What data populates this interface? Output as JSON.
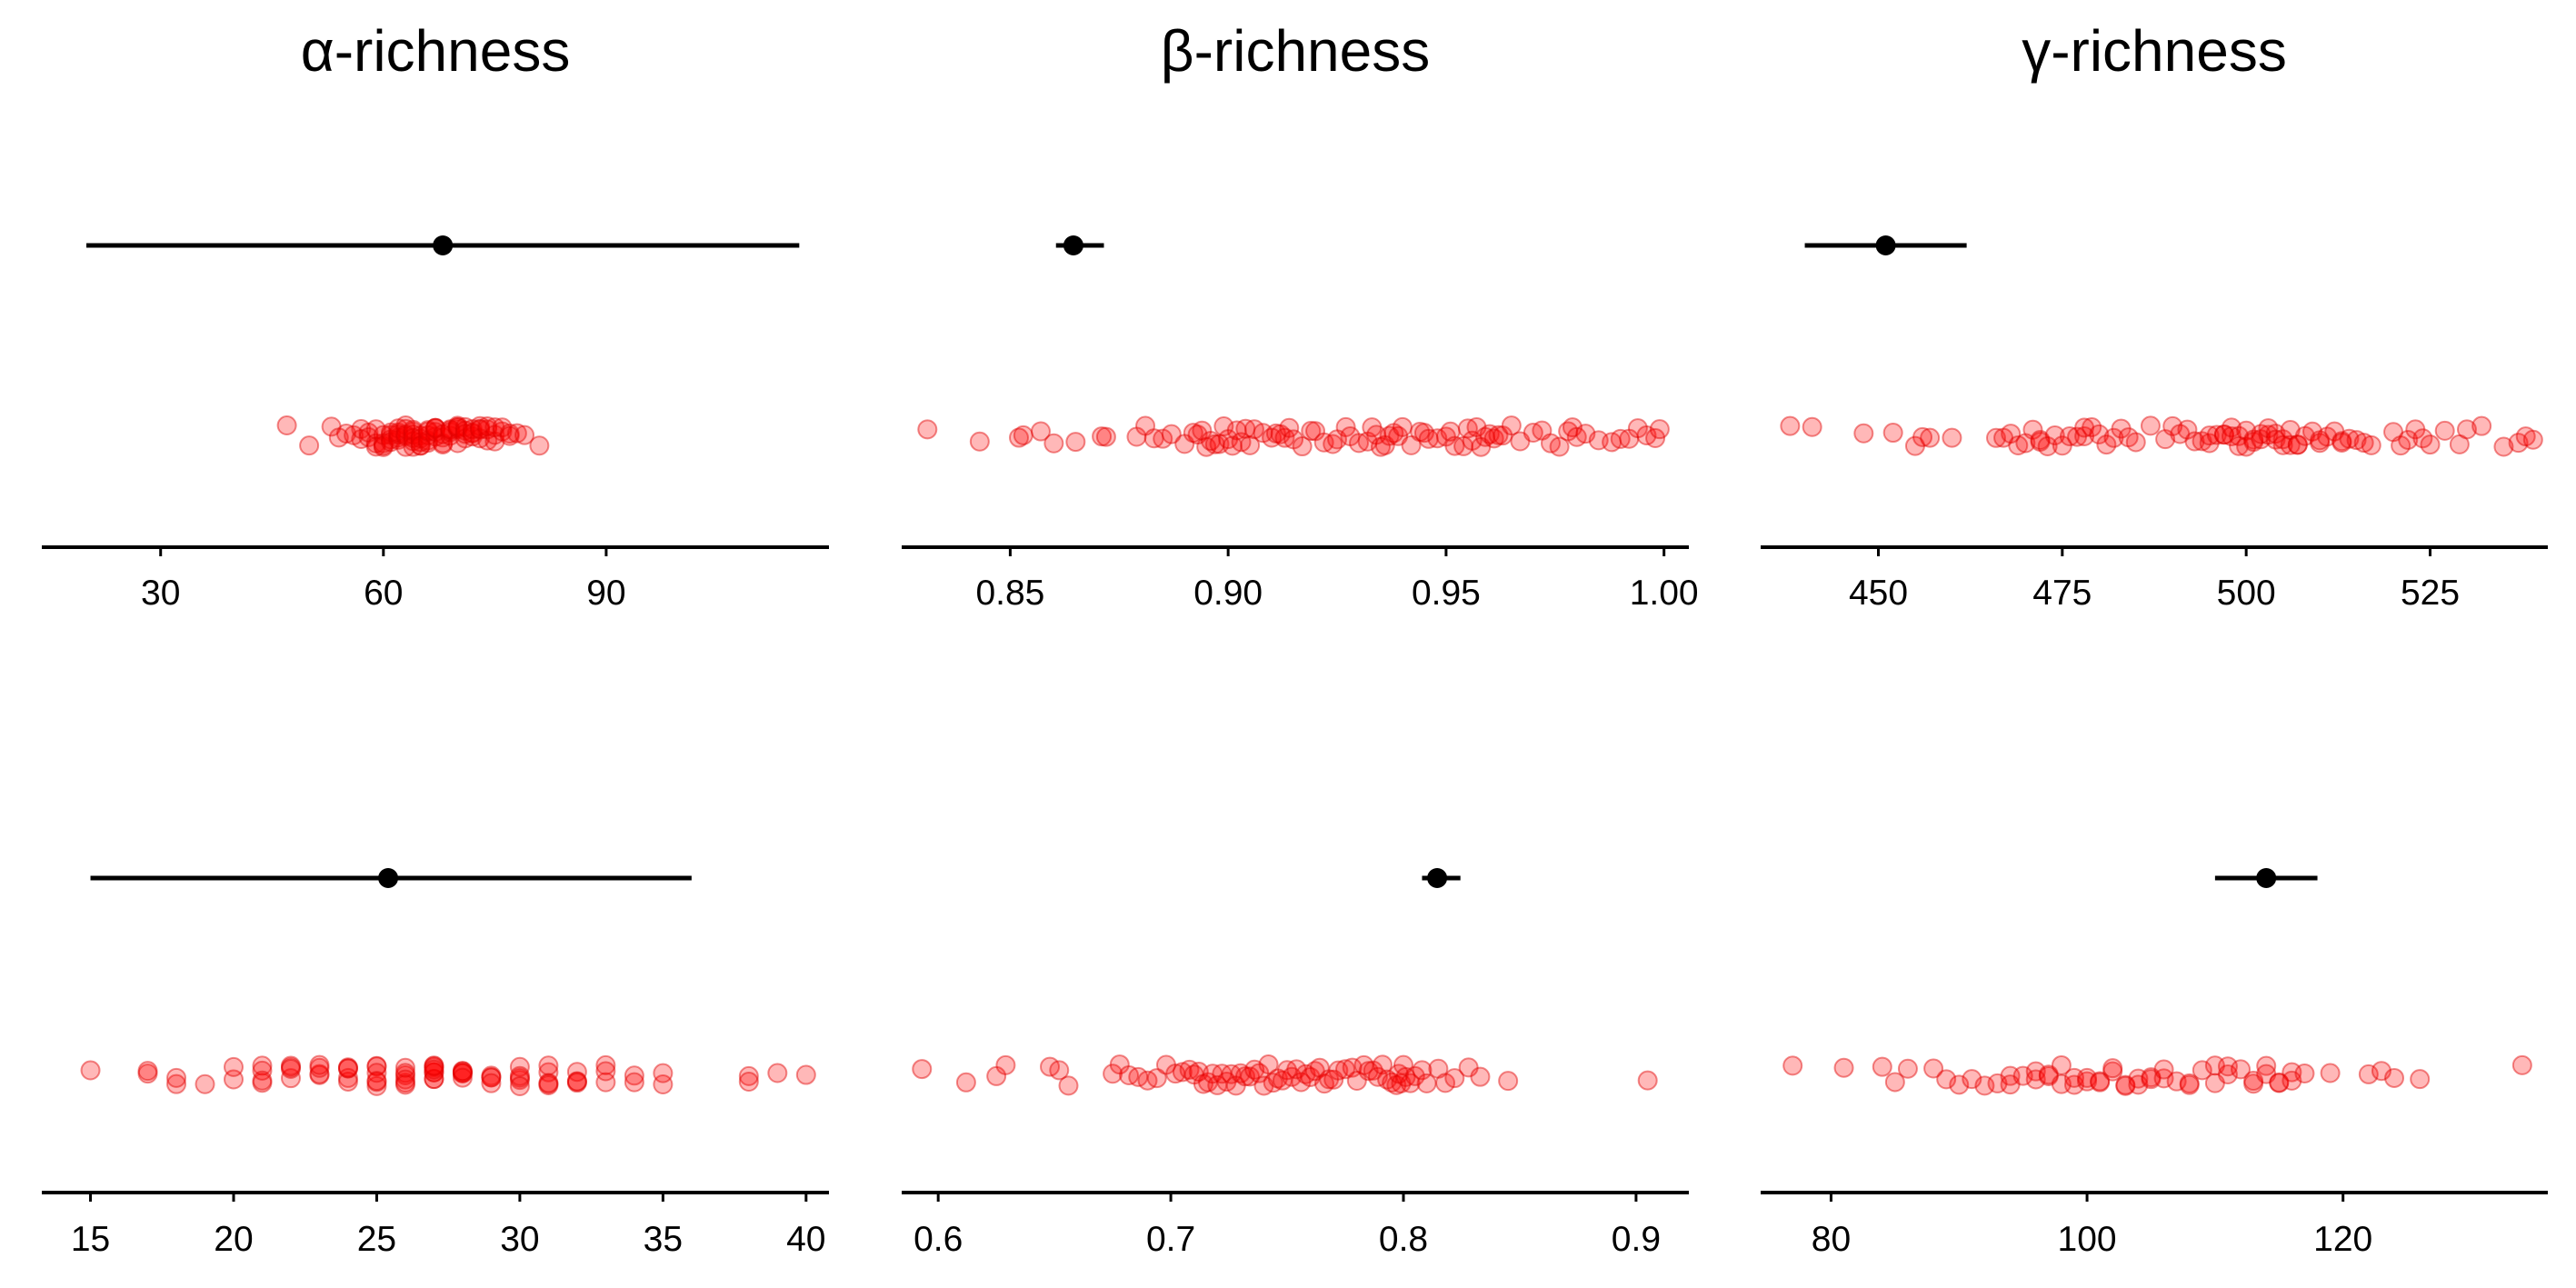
{
  "colors": {
    "point_fill": "#ff0000",
    "point_stroke": "#e00000",
    "estimate": "#000000",
    "axis": "#000000",
    "background": "#ffffff"
  },
  "chart_data": [
    {
      "type": "scatter",
      "title": "α-richness",
      "row": 0,
      "col": 0,
      "xlim": [
        14,
        120
      ],
      "ticks": [
        30,
        60,
        90
      ],
      "tick_labels": [
        "30",
        "60",
        "90"
      ],
      "interval": {
        "low": 20,
        "estimate": 68,
        "high": 116
      },
      "points": [
        47,
        50,
        53,
        54,
        55,
        56,
        57,
        57,
        58,
        58,
        59,
        59,
        59,
        60,
        60,
        60,
        60,
        61,
        61,
        61,
        61,
        62,
        62,
        62,
        62,
        62,
        63,
        63,
        63,
        63,
        63,
        64,
        64,
        64,
        64,
        64,
        64,
        65,
        65,
        65,
        65,
        65,
        66,
        66,
        66,
        66,
        66,
        67,
        67,
        67,
        67,
        67,
        68,
        68,
        68,
        68,
        69,
        69,
        69,
        69,
        70,
        70,
        70,
        70,
        70,
        71,
        71,
        71,
        71,
        72,
        72,
        72,
        72,
        73,
        73,
        73,
        73,
        74,
        74,
        74,
        75,
        75,
        75,
        76,
        76,
        77,
        77,
        78,
        79,
        81
      ]
    },
    {
      "type": "scatter",
      "title": "β-richness",
      "row": 0,
      "col": 1,
      "xlim": [
        0.8251,
        1.0057
      ],
      "ticks": [
        0.85,
        0.9,
        0.95,
        1.0
      ],
      "tick_labels": [
        "0.85",
        "0.90",
        "0.95",
        "1.00"
      ],
      "interval": {
        "low": 0.8605,
        "estimate": 0.8645,
        "high": 0.8715
      },
      "points": [
        0.831,
        0.843,
        0.852,
        0.853,
        0.857,
        0.86,
        0.865,
        0.871,
        0.872,
        0.879,
        0.881,
        0.883,
        0.885,
        0.887,
        0.89,
        0.892,
        0.893,
        0.894,
        0.895,
        0.896,
        0.897,
        0.898,
        0.899,
        0.9,
        0.901,
        0.902,
        0.903,
        0.904,
        0.905,
        0.906,
        0.908,
        0.91,
        0.911,
        0.912,
        0.913,
        0.914,
        0.915,
        0.917,
        0.919,
        0.92,
        0.922,
        0.924,
        0.925,
        0.927,
        0.928,
        0.93,
        0.932,
        0.933,
        0.934,
        0.935,
        0.936,
        0.937,
        0.938,
        0.939,
        0.94,
        0.942,
        0.944,
        0.945,
        0.946,
        0.948,
        0.95,
        0.951,
        0.952,
        0.954,
        0.955,
        0.956,
        0.957,
        0.958,
        0.959,
        0.96,
        0.961,
        0.962,
        0.963,
        0.965,
        0.967,
        0.97,
        0.972,
        0.974,
        0.976,
        0.978,
        0.979,
        0.98,
        0.982,
        0.985,
        0.988,
        0.99,
        0.992,
        0.994,
        0.996,
        0.998,
        0.999
      ]
    },
    {
      "type": "scatter",
      "title": "γ-richness",
      "row": 0,
      "col": 2,
      "xlim": [
        434,
        541
      ],
      "ticks": [
        450,
        475,
        500,
        525
      ],
      "tick_labels": [
        "450",
        "475",
        "500",
        "525"
      ],
      "interval": {
        "low": 440,
        "estimate": 451,
        "high": 462
      },
      "points": [
        438,
        441,
        448,
        452,
        455,
        456,
        457,
        460,
        466,
        467,
        468,
        469,
        470,
        471,
        472,
        472,
        473,
        474,
        475,
        476,
        477,
        478,
        478,
        479,
        480,
        481,
        482,
        483,
        484,
        485,
        487,
        489,
        490,
        491,
        492,
        493,
        494,
        495,
        495,
        496,
        497,
        497,
        498,
        498,
        499,
        499,
        500,
        500,
        501,
        501,
        502,
        502,
        503,
        503,
        504,
        504,
        505,
        505,
        506,
        506,
        507,
        507,
        508,
        509,
        510,
        510,
        511,
        512,
        513,
        513,
        514,
        515,
        516,
        517,
        520,
        521,
        522,
        523,
        524,
        525,
        527,
        529,
        530,
        532,
        535,
        537,
        538,
        539
      ]
    },
    {
      "type": "scatter",
      "title": "",
      "row": 1,
      "col": 0,
      "xlim": [
        13.3,
        40.8
      ],
      "ticks": [
        15,
        20,
        25,
        30,
        35,
        40
      ],
      "tick_labels": [
        "15",
        "20",
        "25",
        "30",
        "35",
        "40"
      ],
      "interval": {
        "low": 15,
        "estimate": 25.4,
        "high": 36
      },
      "points": [
        15,
        17,
        17,
        18,
        18,
        19,
        20,
        20,
        21,
        21,
        21,
        21,
        22,
        22,
        22,
        22,
        23,
        23,
        23,
        23,
        24,
        24,
        24,
        24,
        24,
        25,
        25,
        25,
        25,
        25,
        25,
        26,
        26,
        26,
        26,
        26,
        26,
        27,
        27,
        27,
        27,
        27,
        27,
        27,
        27,
        28,
        28,
        28,
        28,
        28,
        28,
        29,
        29,
        29,
        29,
        30,
        30,
        30,
        30,
        30,
        31,
        31,
        31,
        31,
        31,
        32,
        32,
        32,
        32,
        33,
        33,
        33,
        34,
        34,
        35,
        35,
        38,
        38,
        39,
        40
      ]
    },
    {
      "type": "scatter",
      "title": "",
      "row": 1,
      "col": 1,
      "xlim": [
        0.5843,
        0.9227
      ],
      "ticks": [
        0.6,
        0.7,
        0.8,
        0.9
      ],
      "tick_labels": [
        "0.6",
        "0.7",
        "0.8",
        "0.9"
      ],
      "interval": {
        "low": 0.808,
        "estimate": 0.8145,
        "high": 0.8245
      },
      "points": [
        0.593,
        0.612,
        0.625,
        0.629,
        0.648,
        0.652,
        0.656,
        0.675,
        0.678,
        0.682,
        0.686,
        0.69,
        0.694,
        0.698,
        0.702,
        0.705,
        0.708,
        0.71,
        0.712,
        0.714,
        0.716,
        0.718,
        0.72,
        0.722,
        0.724,
        0.726,
        0.728,
        0.73,
        0.732,
        0.734,
        0.736,
        0.738,
        0.74,
        0.742,
        0.744,
        0.746,
        0.748,
        0.75,
        0.752,
        0.754,
        0.756,
        0.758,
        0.76,
        0.762,
        0.764,
        0.766,
        0.768,
        0.77,
        0.772,
        0.775,
        0.778,
        0.78,
        0.783,
        0.785,
        0.787,
        0.789,
        0.791,
        0.793,
        0.795,
        0.797,
        0.798,
        0.799,
        0.8,
        0.801,
        0.803,
        0.805,
        0.808,
        0.81,
        0.815,
        0.818,
        0.822,
        0.828,
        0.833,
        0.845,
        0.905
      ]
    },
    {
      "type": "scatter",
      "title": "",
      "row": 1,
      "col": 2,
      "xlim": [
        74.5,
        136
      ],
      "ticks": [
        80,
        100,
        120
      ],
      "tick_labels": [
        "80",
        "100",
        "120"
      ],
      "interval": {
        "low": 110,
        "estimate": 114,
        "high": 118
      },
      "points": [
        77,
        81,
        84,
        85,
        86,
        88,
        89,
        90,
        91,
        92,
        93,
        94,
        94,
        95,
        96,
        96,
        97,
        97,
        98,
        98,
        99,
        99,
        100,
        100,
        101,
        101,
        102,
        102,
        103,
        103,
        104,
        104,
        105,
        105,
        106,
        106,
        107,
        108,
        108,
        109,
        110,
        110,
        111,
        111,
        112,
        113,
        113,
        114,
        114,
        115,
        115,
        116,
        116,
        117,
        119,
        122,
        123,
        124,
        126,
        134
      ]
    }
  ]
}
